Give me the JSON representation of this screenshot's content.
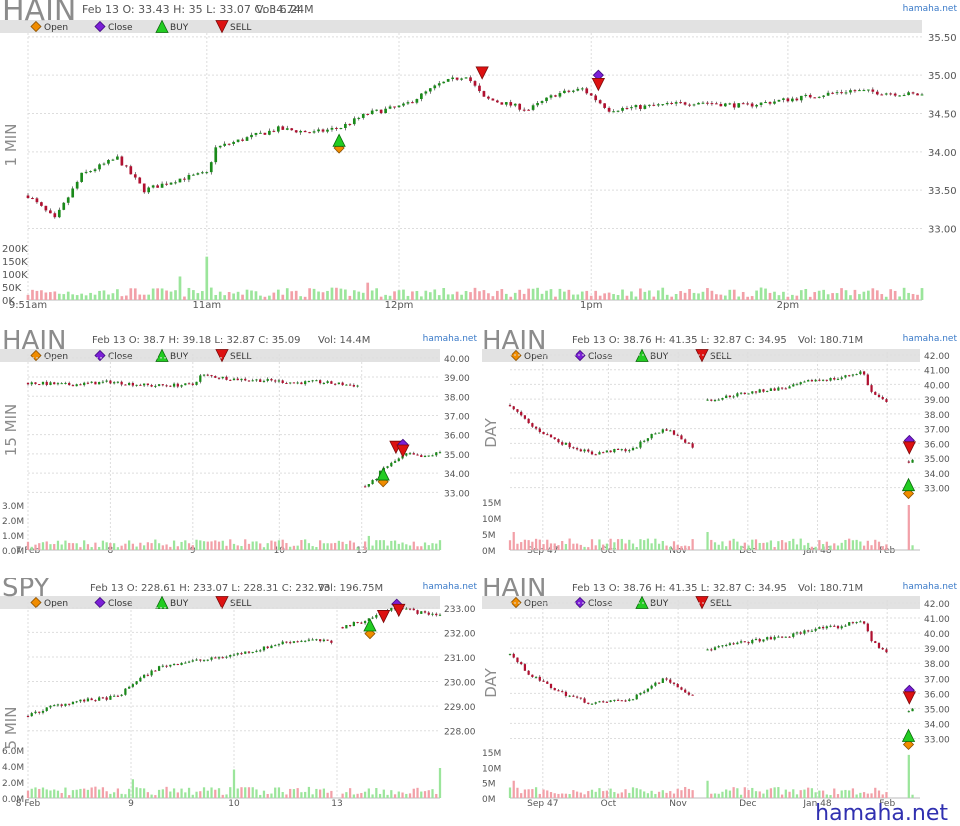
{
  "watermark": "hamaha.net",
  "legend": {
    "open": "Open",
    "close": "Close",
    "buy": "BUY",
    "sell": "SELL"
  },
  "colors": {
    "up": "#1a8a1a",
    "down": "#b01030",
    "vol_up": "#9be59b",
    "vol_down": "#f2a0a8",
    "buy": "#22cc22",
    "sell": "#dd1111",
    "open_marker": "#f08c00",
    "close_marker": "#7b1fd6",
    "legend_bar": "#e2e2e2",
    "grid": "#dddddd",
    "title": "#8c8c8c",
    "link": "#3a7ac8"
  },
  "chart_data": [
    {
      "id": "p1",
      "type": "candlestick",
      "symbol": "HAIN",
      "period": "1 MIN",
      "info": "Feb 13 O: 33.43 H: 35 L: 33.07 C: 34.74",
      "volume_label": "Vol: 6.24M",
      "source": "hamaha.net",
      "ylim": [
        32.85,
        35.55
      ],
      "y_ticks": [
        "35.50",
        "35.00",
        "34.50",
        "34.00",
        "33.50",
        "33.00"
      ],
      "vol_ticks": [
        "200K",
        "150K",
        "100K",
        "50K",
        "0K"
      ],
      "vol_max": 210000,
      "x_ticks": [
        "9:51am",
        "11am",
        "12pm",
        "1pm",
        "2pm"
      ],
      "x_tick_pos": [
        0,
        0.2,
        0.415,
        0.63,
        0.85
      ],
      "points": [
        [
          0,
          33.43
        ],
        [
          0.03,
          33.12
        ],
        [
          0.06,
          33.7
        ],
        [
          0.1,
          33.92
        ],
        [
          0.13,
          33.5
        ],
        [
          0.17,
          33.65
        ],
        [
          0.2,
          33.72
        ],
        [
          0.21,
          34.05
        ],
        [
          0.25,
          34.2
        ],
        [
          0.28,
          34.3
        ],
        [
          0.32,
          34.25
        ],
        [
          0.35,
          34.32
        ],
        [
          0.38,
          34.5
        ],
        [
          0.42,
          34.6
        ],
        [
          0.46,
          34.88
        ],
        [
          0.49,
          35.0
        ],
        [
          0.51,
          34.7
        ],
        [
          0.56,
          34.55
        ],
        [
          0.59,
          34.75
        ],
        [
          0.62,
          34.82
        ],
        [
          0.65,
          34.55
        ],
        [
          0.7,
          34.6
        ],
        [
          0.75,
          34.65
        ],
        [
          0.8,
          34.6
        ],
        [
          0.86,
          34.7
        ],
        [
          0.92,
          34.8
        ],
        [
          1.0,
          34.74
        ]
      ],
      "markers": [
        {
          "x": 0.348,
          "y": 34.05,
          "type": "open"
        },
        {
          "x": 0.348,
          "y": 34.15,
          "type": "buy"
        },
        {
          "x": 0.508,
          "y": 35.03,
          "type": "sell"
        },
        {
          "x": 0.638,
          "y": 35.0,
          "type": "close"
        },
        {
          "x": 0.638,
          "y": 34.88,
          "type": "sell"
        }
      ],
      "vol_spikes": [
        [
          0.2,
          175000
        ],
        [
          0.17,
          95000
        ],
        [
          0.38,
          70000
        ]
      ]
    },
    {
      "id": "p2",
      "type": "candlestick",
      "symbol": "HAIN",
      "period": "15 MIN",
      "info": "Feb 13 O: 38.7 H: 39.18 L: 32.87 C: 35.09",
      "volume_label": "Vol: 14.4M",
      "source": "hamaha.net",
      "ylim": [
        32.6,
        40.2
      ],
      "y_ticks": [
        "40.00",
        "39.00",
        "38.00",
        "37.00",
        "36.00",
        "35.00",
        "34.00",
        "33.00"
      ],
      "vol_ticks": [
        "3.0M",
        "2.0M",
        "1.0M",
        "0.0M"
      ],
      "vol_max": 3200000,
      "x_ticks": [
        "7 Feb",
        "8",
        "9",
        "10",
        "13"
      ],
      "x_tick_pos": [
        0,
        0.2,
        0.4,
        0.61,
        0.81
      ],
      "segments": [
        [
          [
            0,
            38.7
          ],
          [
            0.1,
            38.6
          ],
          [
            0.2,
            38.75
          ],
          [
            0.3,
            38.55
          ],
          [
            0.4,
            38.6
          ],
          [
            0.42,
            39.1
          ],
          [
            0.5,
            38.9
          ],
          [
            0.6,
            38.8
          ],
          [
            0.65,
            38.7
          ],
          [
            0.7,
            38.75
          ],
          [
            0.8,
            38.55
          ]
        ],
        [
          [
            0.81,
            33.2
          ],
          [
            0.84,
            33.6
          ],
          [
            0.86,
            34.2
          ],
          [
            0.89,
            34.6
          ],
          [
            0.92,
            35.0
          ],
          [
            0.96,
            34.8
          ],
          [
            1.0,
            35.09
          ]
        ]
      ],
      "markers": [
        {
          "x": 0.862,
          "y": 33.55,
          "type": "open"
        },
        {
          "x": 0.862,
          "y": 33.95,
          "type": "buy"
        },
        {
          "x": 0.893,
          "y": 35.35,
          "type": "sell"
        },
        {
          "x": 0.91,
          "y": 35.5,
          "type": "close"
        },
        {
          "x": 0.91,
          "y": 35.15,
          "type": "sell"
        }
      ],
      "vol_spikes": [
        [
          0.81,
          2700000
        ],
        [
          0.83,
          1000000
        ],
        [
          0.85,
          700000
        ],
        [
          1.0,
          700000
        ]
      ]
    },
    {
      "id": "p3",
      "type": "candlestick",
      "symbol": "HAIN",
      "period": "DAY",
      "info": "Feb 13 O: 38.76 H: 41.35 L: 32.87 C: 34.95",
      "volume_label": "Vol: 180.71M",
      "source": "hamaha.net",
      "ylim": [
        32.5,
        42.2
      ],
      "y_ticks": [
        "42.00",
        "41.00",
        "40.00",
        "39.00",
        "38.00",
        "37.00",
        "36.00",
        "35.00",
        "34.00",
        "33.00"
      ],
      "vol_ticks": [
        "15M",
        "10M",
        "5M",
        "0M"
      ],
      "vol_max": 16000000,
      "x_ticks": [
        "Sep 47",
        "Oct",
        "Nov",
        "Dec",
        "Jan 48",
        "Feb"
      ],
      "x_tick_pos": [
        0.08,
        0.24,
        0.41,
        0.58,
        0.75,
        0.92
      ],
      "segments": [
        [
          [
            0,
            38.6
          ],
          [
            0.05,
            37.2
          ],
          [
            0.12,
            36.1
          ],
          [
            0.2,
            35.3
          ],
          [
            0.25,
            35.5
          ],
          [
            0.3,
            35.6
          ],
          [
            0.34,
            36.5
          ],
          [
            0.38,
            37.0
          ],
          [
            0.42,
            36.3
          ],
          [
            0.45,
            35.7
          ]
        ],
        [
          [
            0.48,
            38.9
          ],
          [
            0.55,
            39.3
          ],
          [
            0.62,
            39.6
          ],
          [
            0.68,
            39.8
          ],
          [
            0.74,
            40.3
          ],
          [
            0.8,
            40.4
          ],
          [
            0.86,
            40.9
          ],
          [
            0.88,
            39.5
          ],
          [
            0.92,
            38.7
          ]
        ],
        [
          [
            0.965,
            34.0
          ],
          [
            0.975,
            35.0
          ],
          [
            0.985,
            34.95
          ]
        ]
      ],
      "markers": [
        {
          "x": 0.972,
          "y": 32.6,
          "type": "open"
        },
        {
          "x": 0.972,
          "y": 33.2,
          "type": "buy"
        },
        {
          "x": 0.974,
          "y": 36.2,
          "type": "close"
        },
        {
          "x": 0.974,
          "y": 35.7,
          "type": "sell"
        }
      ],
      "vol_spikes": [
        [
          0.01,
          6000000
        ],
        [
          0.48,
          6000000
        ],
        [
          0.975,
          15000000
        ]
      ]
    },
    {
      "id": "p4",
      "type": "candlestick",
      "symbol": "SPY",
      "period": "5 MIN",
      "info": "Feb 13 O: 228.61 H: 233.07 L: 228.31 C: 232.73",
      "volume_label": "Vol: 196.75M",
      "source": "hamaha.net",
      "ylim": [
        227.5,
        233.4
      ],
      "y_ticks": [
        "233.00",
        "232.00",
        "231.00",
        "230.00",
        "229.00",
        "228.00"
      ],
      "vol_ticks": [
        "6.0M",
        "4.0M",
        "2.0M",
        "0.0M"
      ],
      "vol_max": 6400000,
      "x_ticks": [
        "8 Feb",
        "9",
        "10",
        "13"
      ],
      "x_tick_pos": [
        0,
        0.25,
        0.5,
        0.75
      ],
      "segments": [
        [
          [
            0,
            228.6
          ],
          [
            0.06,
            229.0
          ],
          [
            0.12,
            229.2
          ],
          [
            0.18,
            229.3
          ],
          [
            0.22,
            229.4
          ],
          [
            0.26,
            230.0
          ],
          [
            0.32,
            230.6
          ],
          [
            0.38,
            230.8
          ],
          [
            0.44,
            230.9
          ],
          [
            0.5,
            231.1
          ],
          [
            0.56,
            231.3
          ],
          [
            0.62,
            231.6
          ],
          [
            0.68,
            231.7
          ],
          [
            0.74,
            231.6
          ]
        ],
        [
          [
            0.76,
            232.2
          ],
          [
            0.82,
            232.5
          ],
          [
            0.86,
            232.8
          ],
          [
            0.9,
            233.05
          ],
          [
            0.95,
            232.8
          ],
          [
            1.0,
            232.73
          ]
        ]
      ],
      "markers": [
        {
          "x": 0.83,
          "y": 231.95,
          "type": "open"
        },
        {
          "x": 0.83,
          "y": 232.3,
          "type": "buy"
        },
        {
          "x": 0.863,
          "y": 232.65,
          "type": "sell"
        },
        {
          "x": 0.895,
          "y": 233.15,
          "type": "close"
        },
        {
          "x": 0.9,
          "y": 232.9,
          "type": "sell"
        }
      ],
      "vol_spikes": [
        [
          0.25,
          2500000
        ],
        [
          0.5,
          3800000
        ],
        [
          0.75,
          4500000
        ],
        [
          1.0,
          4000000
        ]
      ]
    },
    {
      "id": "p5",
      "type": "candlestick",
      "symbol": "HAIN",
      "period": "DAY",
      "info": "Feb 13 O: 38.76 H: 41.35 L: 32.87 C: 34.95",
      "volume_label": "Vol: 180.71M",
      "source": "hamaha.net",
      "ylim": [
        32.5,
        42.2
      ],
      "y_ticks": [
        "42.00",
        "41.00",
        "40.00",
        "39.00",
        "38.00",
        "37.00",
        "36.00",
        "35.00",
        "34.00",
        "33.00"
      ],
      "vol_ticks": [
        "15M",
        "10M",
        "5M",
        "0M"
      ],
      "vol_max": 16000000,
      "x_ticks": [
        "Sep 47",
        "Oct",
        "Nov",
        "Dec",
        "Jan 48",
        "Feb"
      ],
      "x_tick_pos": [
        0.08,
        0.24,
        0.41,
        0.58,
        0.75,
        0.92
      ],
      "segments": [
        [
          [
            0,
            38.6
          ],
          [
            0.05,
            37.2
          ],
          [
            0.12,
            36.1
          ],
          [
            0.2,
            35.3
          ],
          [
            0.25,
            35.5
          ],
          [
            0.3,
            35.6
          ],
          [
            0.34,
            36.5
          ],
          [
            0.38,
            37.0
          ],
          [
            0.42,
            36.3
          ],
          [
            0.45,
            35.7
          ]
        ],
        [
          [
            0.48,
            38.9
          ],
          [
            0.55,
            39.3
          ],
          [
            0.62,
            39.6
          ],
          [
            0.68,
            39.8
          ],
          [
            0.74,
            40.3
          ],
          [
            0.8,
            40.4
          ],
          [
            0.86,
            40.9
          ],
          [
            0.88,
            39.5
          ],
          [
            0.92,
            38.7
          ]
        ],
        [
          [
            0.965,
            34.0
          ],
          [
            0.975,
            35.0
          ],
          [
            0.985,
            34.95
          ]
        ]
      ],
      "markers": [
        {
          "x": 0.972,
          "y": 32.6,
          "type": "open"
        },
        {
          "x": 0.972,
          "y": 33.2,
          "type": "buy"
        },
        {
          "x": 0.974,
          "y": 36.2,
          "type": "close"
        },
        {
          "x": 0.974,
          "y": 35.7,
          "type": "sell"
        }
      ],
      "vol_spikes": [
        [
          0.01,
          6000000
        ],
        [
          0.48,
          6000000
        ],
        [
          0.975,
          15000000
        ]
      ]
    }
  ]
}
